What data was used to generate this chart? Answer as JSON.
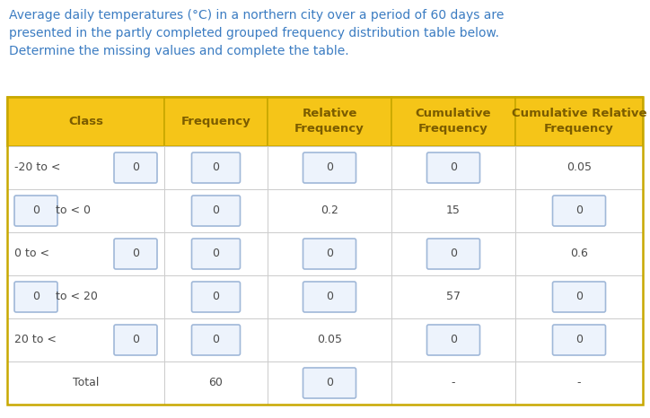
{
  "title_lines": [
    "Average daily temperatures (°C) in a northern city over a period of 60 days are",
    "presented in the partly completed grouped frequency distribution table below.",
    "Determine the missing values and complete the table."
  ],
  "title_color": "#3B7CC2",
  "header_bg": "#F5C518",
  "header_text_color": "#7B5C00",
  "body_bg": "#FFFFFF",
  "input_box_color": "#EDF3FC",
  "input_box_border": "#A0B8D8",
  "text_color": "#4A4A4A",
  "table_border_color": "#C8A800",
  "cell_border_color": "#CCCCCC",
  "headers": [
    "Class",
    "Frequency",
    "Relative\nFrequency",
    "Cumulative\nFrequency",
    "Cumulative Relative\nFrequency"
  ],
  "rows": [
    {
      "class_text": "-20 to <",
      "class_box_left": false,
      "class_has_box": true,
      "class_box_val": "0",
      "freq_is_box": true,
      "freq_val": "0",
      "rel_is_box": true,
      "rel_val": "0",
      "cum_is_box": true,
      "cum_val": "0",
      "cumrel_is_box": false,
      "cumrel_val": "0.05"
    },
    {
      "class_text": "to < 0",
      "class_box_left": true,
      "class_has_box": true,
      "class_box_val": "0",
      "freq_is_box": true,
      "freq_val": "0",
      "rel_is_box": false,
      "rel_val": "0.2",
      "cum_is_box": false,
      "cum_val": "15",
      "cumrel_is_box": true,
      "cumrel_val": "0"
    },
    {
      "class_text": "0 to <",
      "class_box_left": false,
      "class_has_box": true,
      "class_box_val": "0",
      "freq_is_box": true,
      "freq_val": "0",
      "rel_is_box": true,
      "rel_val": "0",
      "cum_is_box": true,
      "cum_val": "0",
      "cumrel_is_box": false,
      "cumrel_val": "0.6"
    },
    {
      "class_text": "to < 20",
      "class_box_left": true,
      "class_has_box": true,
      "class_box_val": "0",
      "freq_is_box": true,
      "freq_val": "0",
      "rel_is_box": true,
      "rel_val": "0",
      "cum_is_box": false,
      "cum_val": "57",
      "cumrel_is_box": true,
      "cumrel_val": "0"
    },
    {
      "class_text": "20 to <",
      "class_box_left": false,
      "class_has_box": true,
      "class_box_val": "0",
      "freq_is_box": true,
      "freq_val": "0",
      "rel_is_box": false,
      "rel_val": "0.05",
      "cum_is_box": true,
      "cum_val": "0",
      "cumrel_is_box": true,
      "cumrel_val": "0"
    },
    {
      "class_text": "Total",
      "class_box_left": false,
      "class_has_box": false,
      "class_box_val": "",
      "freq_is_box": false,
      "freq_val": "60",
      "rel_is_box": true,
      "rel_val": "0",
      "cum_is_box": false,
      "cum_val": "-",
      "cumrel_is_box": false,
      "cumrel_val": "-"
    }
  ],
  "fig_width": 7.24,
  "fig_height": 4.66,
  "dpi": 100
}
